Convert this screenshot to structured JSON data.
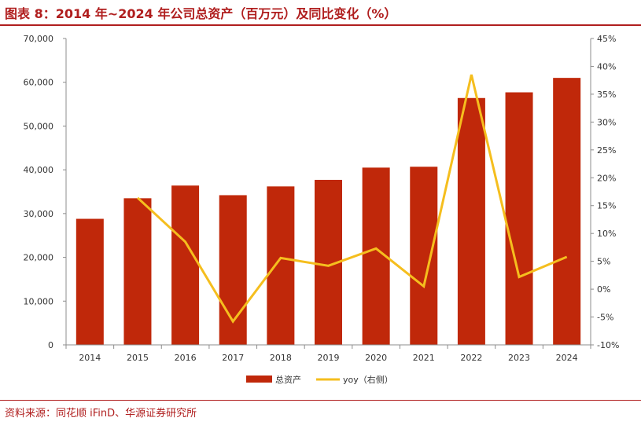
{
  "title": "图表 8：2014 年~2024 年公司总资产（百万元）及同比变化（%）",
  "source": "资料来源：同花顺 iFinD、华源证券研究所",
  "colors": {
    "bar": "#c0280a",
    "line": "#f5be1e",
    "title": "#b01e1e"
  },
  "chart_data": {
    "type": "bar",
    "categories": [
      "2014",
      "2015",
      "2016",
      "2017",
      "2018",
      "2019",
      "2020",
      "2021",
      "2022",
      "2023",
      "2024"
    ],
    "series": [
      {
        "name": "总资产",
        "type": "bar",
        "axis": "left",
        "values": [
          28800,
          33500,
          36400,
          34200,
          36200,
          37700,
          40500,
          40700,
          56400,
          57700,
          61000
        ]
      },
      {
        "name": "yoy（右侧）",
        "type": "line",
        "axis": "right",
        "values": [
          null,
          16.4,
          8.5,
          -5.8,
          5.6,
          4.2,
          7.3,
          0.5,
          38.5,
          2.2,
          5.8
        ]
      }
    ],
    "y_left": {
      "min": 0,
      "max": 70000,
      "step": 10000,
      "ticks": [
        "0",
        "10,000",
        "20,000",
        "30,000",
        "40,000",
        "50,000",
        "60,000",
        "70,000"
      ]
    },
    "y_right": {
      "min": -10,
      "max": 45,
      "step": 5,
      "ticks": [
        "-10%",
        "-5%",
        "0%",
        "5%",
        "10%",
        "15%",
        "20%",
        "25%",
        "30%",
        "35%",
        "40%",
        "45%"
      ]
    },
    "legend": {
      "position": "bottom",
      "items": [
        "总资产",
        "yoy（右侧）"
      ]
    },
    "grid": false
  }
}
